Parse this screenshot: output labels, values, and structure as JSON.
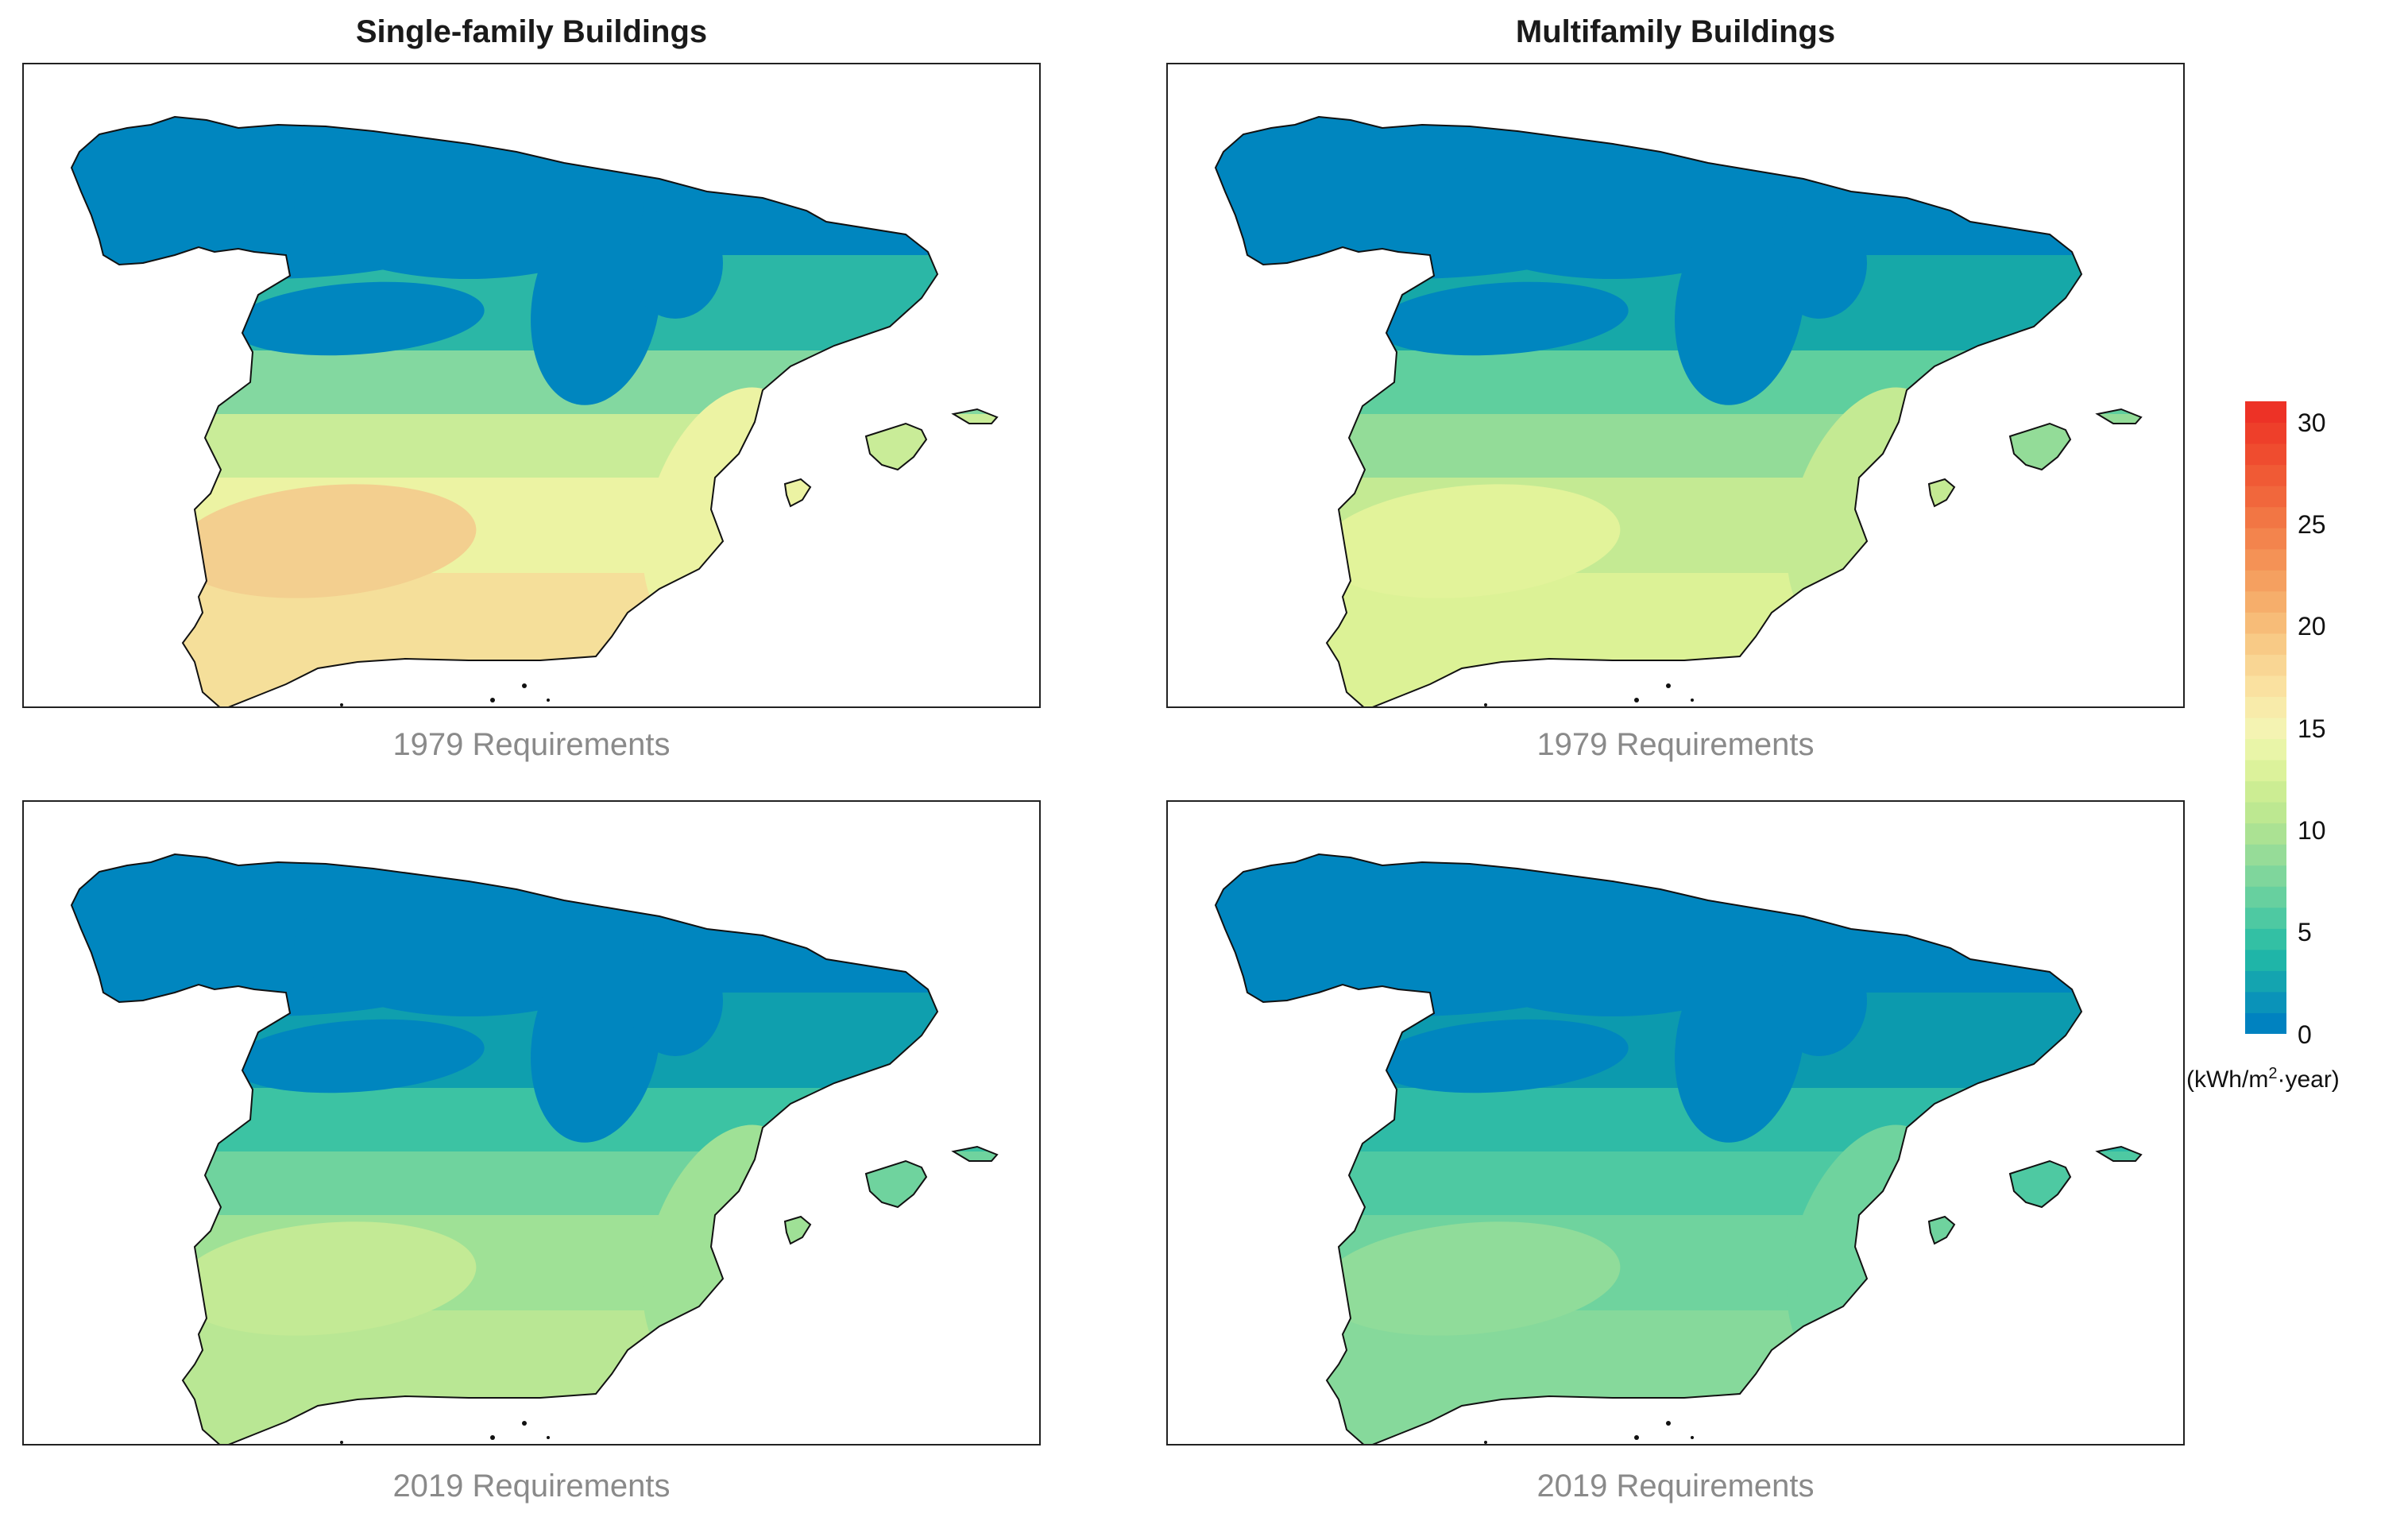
{
  "columns": [
    {
      "title": "Single-family Buildings"
    },
    {
      "title": "Multifamily Buildings"
    }
  ],
  "panels": [
    {
      "caption": "1979 Requirements",
      "palette": [
        "#0086bf",
        "#2bb7a6",
        "#83d8a0",
        "#c9ec98",
        "#ecf3a3",
        "#f5df9a",
        "#f3cf8f"
      ]
    },
    {
      "caption": "1979 Requirements",
      "palette": [
        "#0086bf",
        "#16a8a8",
        "#5fcf9e",
        "#93dc98",
        "#c4ea93",
        "#dcf296",
        "#e2f39a"
      ]
    },
    {
      "caption": "2019 Requirements",
      "palette": [
        "#0086bf",
        "#0f9fae",
        "#3cc3a3",
        "#6fd39e",
        "#9fe196",
        "#b9e794",
        "#c3ea95"
      ]
    },
    {
      "caption": "2019 Requirements",
      "palette": [
        "#0086bf",
        "#0c9aae",
        "#2fbba6",
        "#4ec9a2",
        "#6fd39e",
        "#86d99b",
        "#90dc9a"
      ]
    }
  ],
  "colorbar": {
    "min": 0,
    "max": 31,
    "ticks": [
      "30",
      "25",
      "20",
      "15",
      "10",
      "5",
      "0"
    ],
    "unit_prefix": "(kWh/m",
    "unit_sup": "2",
    "unit_suffix": "·year)",
    "colors": [
      "#0082c0",
      "#0a93b9",
      "#14a4b0",
      "#1fb5a8",
      "#33c0a4",
      "#4ec9a2",
      "#67d09f",
      "#7fd69c",
      "#96dc98",
      "#abe293",
      "#bde891",
      "#cced93",
      "#dcf29b",
      "#e9f5a8",
      "#f4f3b2",
      "#f8ebaa",
      "#fae1a0",
      "#f9d694",
      "#f8ca86",
      "#f7bc78",
      "#f6ae6b",
      "#f5a060",
      "#f49256",
      "#f3844d",
      "#f27644",
      "#f1673c",
      "#f05a35",
      "#ef4c2f",
      "#ee3f2a",
      "#ed3226"
    ]
  }
}
